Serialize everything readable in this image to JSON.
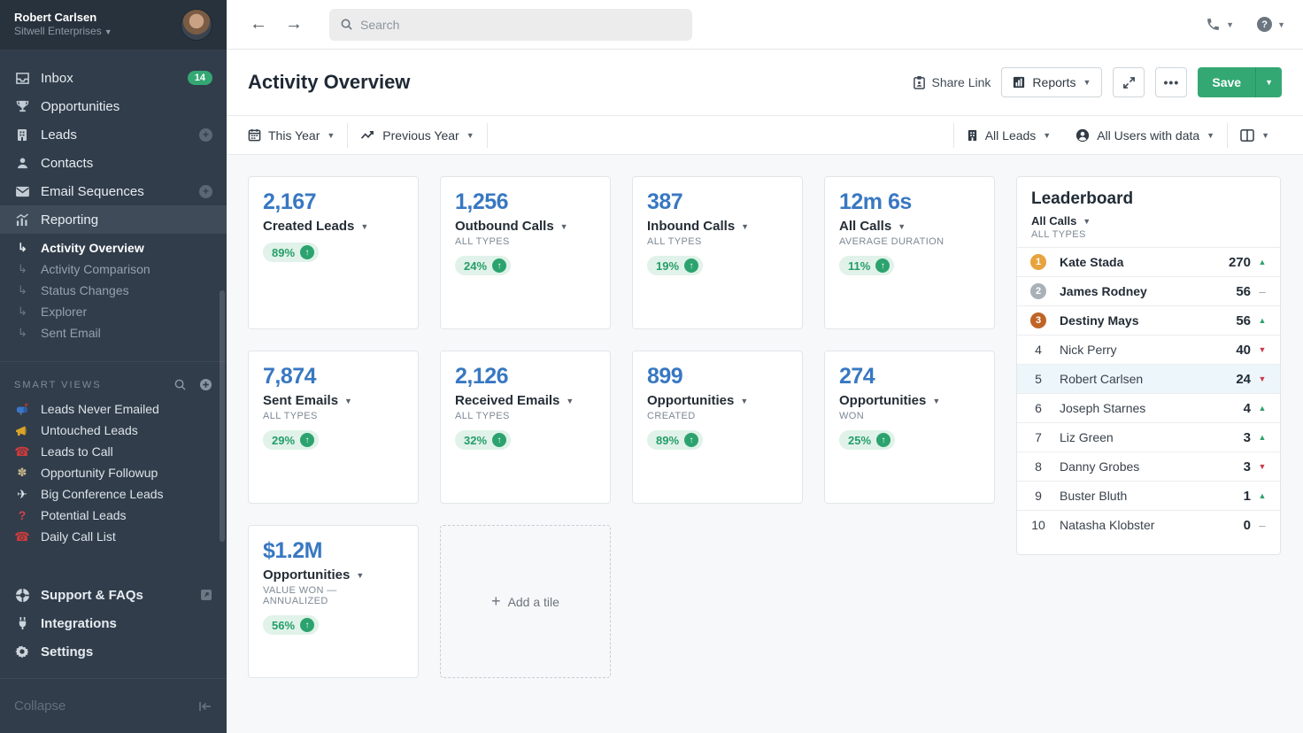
{
  "user": {
    "name": "Robert Carlsen",
    "org": "Sitwell Enterprises"
  },
  "sidebar": {
    "nav": [
      {
        "id": "inbox",
        "icon": "inbox",
        "label": "Inbox",
        "badge": "14"
      },
      {
        "id": "opportunities",
        "icon": "trophy",
        "label": "Opportunities"
      },
      {
        "id": "leads",
        "icon": "building",
        "label": "Leads",
        "plus": true
      },
      {
        "id": "contacts",
        "icon": "person",
        "label": "Contacts"
      },
      {
        "id": "email-sequences",
        "icon": "envelope",
        "label": "Email Sequences",
        "plus": true
      },
      {
        "id": "reporting",
        "icon": "chart",
        "label": "Reporting",
        "active": true
      }
    ],
    "reporting_sub": [
      {
        "id": "activity-overview",
        "label": "Activity Overview",
        "active": true
      },
      {
        "id": "activity-comparison",
        "label": "Activity Comparison"
      },
      {
        "id": "status-changes",
        "label": "Status Changes"
      },
      {
        "id": "explorer",
        "label": "Explorer"
      },
      {
        "id": "sent-email",
        "label": "Sent Email"
      }
    ],
    "smart_views_title": "SMART VIEWS",
    "smart_views": [
      {
        "id": "leads-never-emailed",
        "icon": "mailbox",
        "label": "Leads Never Emailed"
      },
      {
        "id": "untouched-leads",
        "icon": "megaphone",
        "label": "Untouched Leads"
      },
      {
        "id": "leads-to-call",
        "icon": "red-phone",
        "label": "Leads to Call"
      },
      {
        "id": "opportunity-followup",
        "icon": "bouquet",
        "label": "Opportunity Followup"
      },
      {
        "id": "big-conference-leads",
        "icon": "airplane",
        "label": "Big Conference Leads"
      },
      {
        "id": "potential-leads",
        "icon": "question",
        "label": "Potential Leads"
      },
      {
        "id": "daily-call-list",
        "icon": "red-phone",
        "label": "Daily Call List"
      }
    ],
    "bottom": [
      {
        "id": "support-faqs",
        "icon": "life-ring",
        "label": "Support & FAQs",
        "external": true
      },
      {
        "id": "integrations",
        "icon": "plug",
        "label": "Integrations"
      },
      {
        "id": "settings",
        "icon": "gear",
        "label": "Settings"
      }
    ],
    "collapse_label": "Collapse"
  },
  "topbar": {
    "search_placeholder": "Search"
  },
  "header": {
    "title": "Activity Overview",
    "share_link_label": "Share Link",
    "reports_label": "Reports",
    "save_label": "Save"
  },
  "filters": {
    "date_range": "This Year",
    "comparison": "Previous Year",
    "leads_filter": "All Leads",
    "users_filter": "All Users with data"
  },
  "tiles": [
    {
      "value": "2,167",
      "label": "Created Leads",
      "subtitle": "",
      "change": "89%",
      "direction": "up"
    },
    {
      "value": "1,256",
      "label": "Outbound Calls",
      "subtitle": "ALL TYPES",
      "change": "24%",
      "direction": "up"
    },
    {
      "value": "387",
      "label": "Inbound Calls",
      "subtitle": "ALL TYPES",
      "change": "19%",
      "direction": "up"
    },
    {
      "value": "12m 6s",
      "label": "All Calls",
      "subtitle": "AVERAGE DURATION",
      "change": "11%",
      "direction": "up"
    },
    {
      "value": "7,874",
      "label": "Sent Emails",
      "subtitle": "ALL TYPES",
      "change": "29%",
      "direction": "up"
    },
    {
      "value": "2,126",
      "label": "Received Emails",
      "subtitle": "ALL TYPES",
      "change": "32%",
      "direction": "up"
    },
    {
      "value": "899",
      "label": "Opportunities",
      "subtitle": "CREATED",
      "change": "89%",
      "direction": "up"
    },
    {
      "value": "274",
      "label": "Opportunities",
      "subtitle": "WON",
      "change": "25%",
      "direction": "up"
    },
    {
      "value": "$1.2M",
      "label": "Opportunities",
      "subtitle": "VALUE WON — ANNUALIZED",
      "change": "56%",
      "direction": "up"
    }
  ],
  "add_tile_label": "Add a tile",
  "leaderboard": {
    "title": "Leaderboard",
    "metric": "All Calls",
    "subtitle": "ALL TYPES",
    "rows": [
      {
        "rank": 1,
        "name": "Kate Stada",
        "value": "270",
        "trend": "up"
      },
      {
        "rank": 2,
        "name": "James Rodney",
        "value": "56",
        "trend": "flat"
      },
      {
        "rank": 3,
        "name": "Destiny Mays",
        "value": "56",
        "trend": "up"
      },
      {
        "rank": 4,
        "name": "Nick Perry",
        "value": "40",
        "trend": "down"
      },
      {
        "rank": 5,
        "name": "Robert Carlsen",
        "value": "24",
        "trend": "down",
        "highlighted": true
      },
      {
        "rank": 6,
        "name": "Joseph Starnes",
        "value": "4",
        "trend": "up"
      },
      {
        "rank": 7,
        "name": "Liz Green",
        "value": "3",
        "trend": "up"
      },
      {
        "rank": 8,
        "name": "Danny Grobes",
        "value": "3",
        "trend": "down"
      },
      {
        "rank": 9,
        "name": "Buster Bluth",
        "value": "1",
        "trend": "up"
      },
      {
        "rank": 10,
        "name": "Natasha Klobster",
        "value": "0",
        "trend": "flat"
      }
    ]
  },
  "colors": {
    "accent_green": "#34a873",
    "value_blue": "#3878c2",
    "trend_up": "#2fa06b",
    "trend_down": "#cb3a4c",
    "rank_gold": "#e8a33d",
    "rank_silver": "#a9b1b8",
    "rank_bronze": "#bf6426",
    "sidebar_bg": "#313d4b",
    "highlight_row": "#edf6fa"
  }
}
